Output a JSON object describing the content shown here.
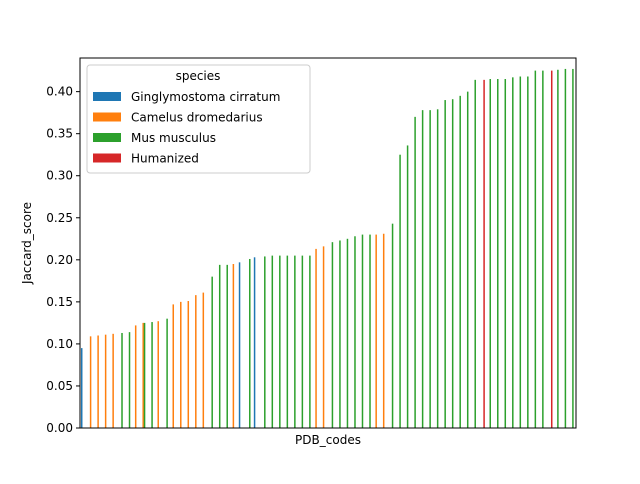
{
  "chart_data": {
    "type": "bar",
    "xlabel": "PDB_codes",
    "ylabel": "Jaccard_score",
    "ylim": [
      0,
      0.44
    ],
    "yticks": [
      0.0,
      0.05,
      0.1,
      0.15,
      0.2,
      0.25,
      0.3,
      0.35,
      0.4
    ],
    "ytick_labels": [
      "0.00",
      "0.05",
      "0.10",
      "0.15",
      "0.20",
      "0.25",
      "0.30",
      "0.35",
      "0.40"
    ],
    "grid": false,
    "legend": {
      "title": "species",
      "placement": "upper-left",
      "entries": [
        {
          "name": "Ginglymostoma cirratum",
          "color": "#1f77b4"
        },
        {
          "name": "Camelus dromedarius",
          "color": "#ff7f0e"
        },
        {
          "name": "Mus musculus",
          "color": "#2ca02c"
        },
        {
          "name": "Humanized",
          "color": "#d62728"
        }
      ]
    },
    "categories_count": 66,
    "bars": [
      {
        "i": 0,
        "species": "Ginglymostoma cirratum",
        "value": 0.095
      },
      {
        "i": 1,
        "species": "Camelus dromedarius",
        "value": 0.109
      },
      {
        "i": 2,
        "species": "Camelus dromedarius",
        "value": 0.11
      },
      {
        "i": 3,
        "species": "Camelus dromedarius",
        "value": 0.111
      },
      {
        "i": 4,
        "species": "Camelus dromedarius",
        "value": 0.112
      },
      {
        "i": 5,
        "species": "Mus musculus",
        "value": 0.113
      },
      {
        "i": 6,
        "species": "Mus musculus",
        "value": 0.114
      },
      {
        "i": 7,
        "species": "Camelus dromedarius",
        "value": 0.122
      },
      {
        "i": 8,
        "species": "Camelus dromedarius",
        "value": 0.125
      },
      {
        "i": 8,
        "species": "Mus musculus",
        "value": 0.125
      },
      {
        "i": 9,
        "species": "Mus musculus",
        "value": 0.126
      },
      {
        "i": 10,
        "species": "Camelus dromedarius",
        "value": 0.127
      },
      {
        "i": 11,
        "species": "Mus musculus",
        "value": 0.13
      },
      {
        "i": 12,
        "species": "Camelus dromedarius",
        "value": 0.147
      },
      {
        "i": 13,
        "species": "Camelus dromedarius",
        "value": 0.15
      },
      {
        "i": 14,
        "species": "Camelus dromedarius",
        "value": 0.151
      },
      {
        "i": 15,
        "species": "Camelus dromedarius",
        "value": 0.158
      },
      {
        "i": 16,
        "species": "Camelus dromedarius",
        "value": 0.161
      },
      {
        "i": 17,
        "species": "Mus musculus",
        "value": 0.18
      },
      {
        "i": 18,
        "species": "Mus musculus",
        "value": 0.194
      },
      {
        "i": 19,
        "species": "Mus musculus",
        "value": 0.194
      },
      {
        "i": 20,
        "species": "Camelus dromedarius",
        "value": 0.195
      },
      {
        "i": 21,
        "species": "Ginglymostoma cirratum",
        "value": 0.197
      },
      {
        "i": 22,
        "species": "Mus musculus",
        "value": 0.201
      },
      {
        "i": 23,
        "species": "Ginglymostoma cirratum",
        "value": 0.203
      },
      {
        "i": 24,
        "species": "Mus musculus",
        "value": 0.204
      },
      {
        "i": 25,
        "species": "Mus musculus",
        "value": 0.205
      },
      {
        "i": 26,
        "species": "Mus musculus",
        "value": 0.205
      },
      {
        "i": 27,
        "species": "Mus musculus",
        "value": 0.205
      },
      {
        "i": 28,
        "species": "Mus musculus",
        "value": 0.205
      },
      {
        "i": 29,
        "species": "Mus musculus",
        "value": 0.205
      },
      {
        "i": 30,
        "species": "Mus musculus",
        "value": 0.205
      },
      {
        "i": 31,
        "species": "Camelus dromedarius",
        "value": 0.213
      },
      {
        "i": 32,
        "species": "Camelus dromedarius",
        "value": 0.216
      },
      {
        "i": 33,
        "species": "Mus musculus",
        "value": 0.221
      },
      {
        "i": 34,
        "species": "Mus musculus",
        "value": 0.223
      },
      {
        "i": 35,
        "species": "Mus musculus",
        "value": 0.225
      },
      {
        "i": 36,
        "species": "Mus musculus",
        "value": 0.228
      },
      {
        "i": 37,
        "species": "Mus musculus",
        "value": 0.23
      },
      {
        "i": 38,
        "species": "Mus musculus",
        "value": 0.23
      },
      {
        "i": 39,
        "species": "Camelus dromedarius",
        "value": 0.23
      },
      {
        "i": 40,
        "species": "Camelus dromedarius",
        "value": 0.231
      },
      {
        "i": 41,
        "species": "Mus musculus",
        "value": 0.243
      },
      {
        "i": 42,
        "species": "Mus musculus",
        "value": 0.325
      },
      {
        "i": 43,
        "species": "Mus musculus",
        "value": 0.336
      },
      {
        "i": 44,
        "species": "Mus musculus",
        "value": 0.37
      },
      {
        "i": 45,
        "species": "Mus musculus",
        "value": 0.378
      },
      {
        "i": 46,
        "species": "Mus musculus",
        "value": 0.378
      },
      {
        "i": 47,
        "species": "Mus musculus",
        "value": 0.379
      },
      {
        "i": 48,
        "species": "Mus musculus",
        "value": 0.39
      },
      {
        "i": 49,
        "species": "Mus musculus",
        "value": 0.391
      },
      {
        "i": 50,
        "species": "Mus musculus",
        "value": 0.395
      },
      {
        "i": 51,
        "species": "Mus musculus",
        "value": 0.4
      },
      {
        "i": 52,
        "species": "Mus musculus",
        "value": 0.414
      },
      {
        "i": 53,
        "species": "Humanized",
        "value": 0.414
      },
      {
        "i": 54,
        "species": "Mus musculus",
        "value": 0.415
      },
      {
        "i": 55,
        "species": "Mus musculus",
        "value": 0.415
      },
      {
        "i": 56,
        "species": "Mus musculus",
        "value": 0.415
      },
      {
        "i": 57,
        "species": "Mus musculus",
        "value": 0.417
      },
      {
        "i": 58,
        "species": "Mus musculus",
        "value": 0.418
      },
      {
        "i": 59,
        "species": "Mus musculus",
        "value": 0.418
      },
      {
        "i": 60,
        "species": "Mus musculus",
        "value": 0.425
      },
      {
        "i": 61,
        "species": "Mus musculus",
        "value": 0.425
      },
      {
        "i": 62,
        "species": "Humanized",
        "value": 0.425
      },
      {
        "i": 63,
        "species": "Mus musculus",
        "value": 0.426
      },
      {
        "i": 64,
        "species": "Mus musculus",
        "value": 0.427
      },
      {
        "i": 65,
        "species": "Mus musculus",
        "value": 0.427
      }
    ]
  }
}
